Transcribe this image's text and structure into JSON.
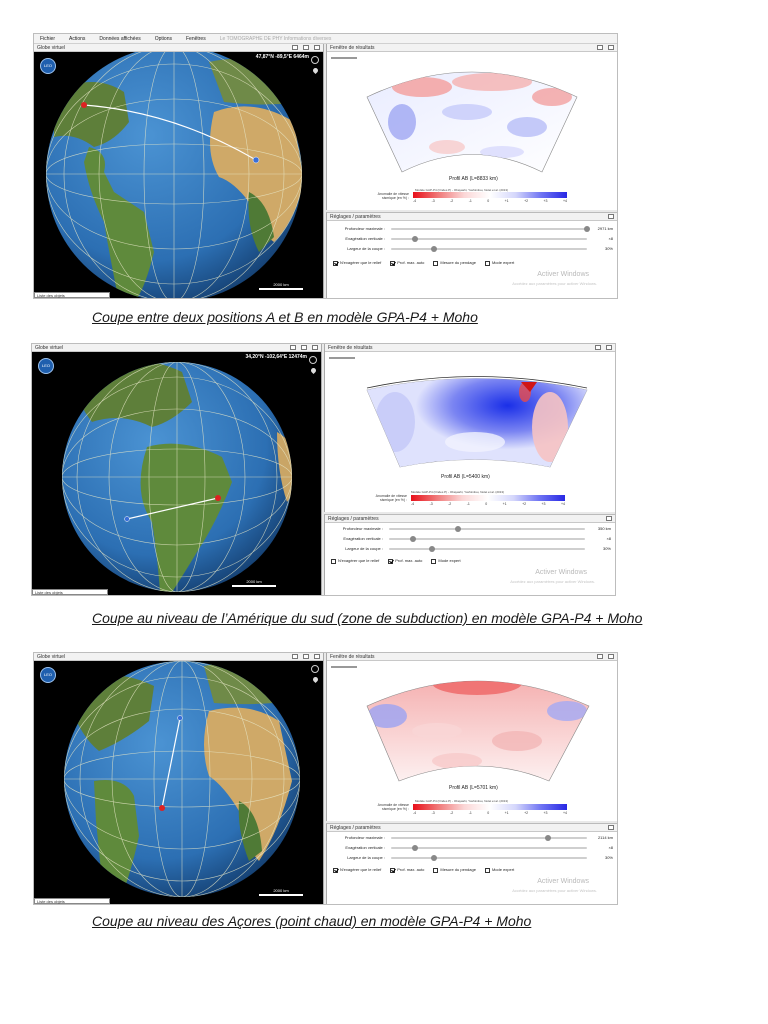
{
  "menu": {
    "items": [
      "Fichier",
      "Actions",
      "Données affichées",
      "Options",
      "Fenêtres"
    ],
    "faint": "Le TOMOGRAPHE DE PHY   Informations diverses"
  },
  "window_labels": {
    "globe": "Globe virtuel",
    "results": "Fenêtre de résultats",
    "settings": "Réglages / paramètres",
    "object_list": "Liste des objets",
    "globe_logo": "LEO"
  },
  "legend": {
    "label": "Anomalie de vitesse sismique (en %) :",
    "model": "Modèle GAP-P4 (Ondes P) - Obayashi, Yoshimitsu, Nolet et al. (2013)",
    "ticks": [
      "-4",
      "-3",
      "-2",
      "-1",
      "0",
      "+1",
      "+2",
      "+3",
      "+4"
    ]
  },
  "settings_labels": {
    "depth": "Profondeur maximale :",
    "exag": "Exagération verticale :",
    "width": "Largeur de la coupe :",
    "relief": "N'exagérer que le relief",
    "auto": "Prof. max. auto",
    "dip": "Mesure du pendage",
    "expert": "Mode expert"
  },
  "watermark": {
    "title": "Activer Windows",
    "sub": "Accédez aux paramètres pour activer Windows."
  },
  "panels": [
    {
      "coords": "47,87°N  -89,5°E  6464m",
      "scale": "2000 km",
      "profile_title": "Profil AB (L=8833 km)",
      "depth_value": "2971 km",
      "depth_level": 1.0,
      "exag_value": "×8",
      "exag_level": 0.12,
      "width_value": "30%",
      "width_level": 0.22,
      "relief": true,
      "auto": true,
      "dip": false,
      "expert": false,
      "has_dip": true,
      "caption": "Coupe entre deux positions A et B en modèle GPA-P4 + Moho"
    },
    {
      "coords": "34,20°N  -102,64°E  12474m",
      "scale": "2000 km",
      "profile_title": "Profil AB (L=5400 km)",
      "depth_value": "350 km",
      "depth_level": 0.35,
      "exag_value": "×8",
      "exag_level": 0.12,
      "width_value": "30%",
      "width_level": 0.22,
      "relief": false,
      "auto": true,
      "dip": false,
      "expert": false,
      "has_dip": false,
      "caption": "Coupe au niveau de l’Amérique du sud (zone de subduction) en modèle GPA-P4 + Moho"
    },
    {
      "coords": "",
      "scale": "2000 km",
      "profile_title": "Profil AB (L=5701 km)",
      "depth_value": "2114 km",
      "depth_level": 0.8,
      "exag_value": "×8",
      "exag_level": 0.12,
      "width_value": "30%",
      "width_level": 0.22,
      "relief": true,
      "auto": true,
      "dip": false,
      "expert": false,
      "has_dip": true,
      "caption": "Coupe au niveau des Açores (point chaud) en modèle GPA-P4 + Moho"
    }
  ],
  "colors": {
    "ocean": "#2c72b8",
    "land": "#6d8f45",
    "desert": "#d9b46e",
    "anomaly_red": "#e8101a",
    "anomaly_blue": "#2828e4"
  }
}
